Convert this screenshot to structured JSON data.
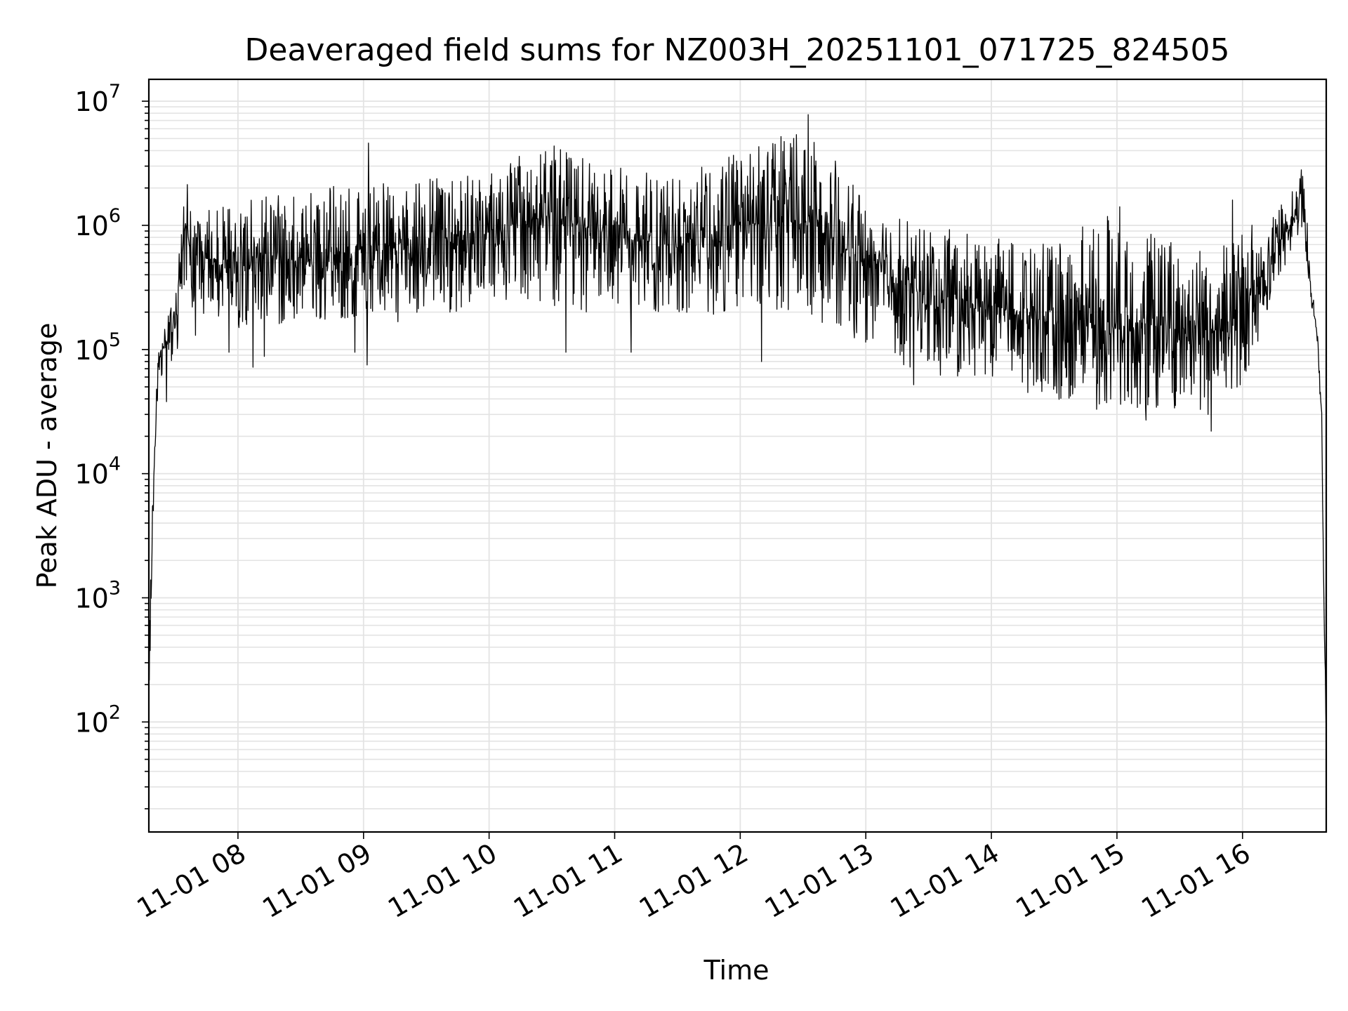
{
  "chart_data": {
    "type": "line",
    "title": "Deaveraged field sums for NZ003H_20251101_071725_824505",
    "xlabel": "Time",
    "ylabel": "Peak ADU - average",
    "yscale": "log",
    "ylim": [
      13,
      15000000
    ],
    "xlim_hours": [
      7.2903,
      16.6667
    ],
    "grid": true,
    "line_color": "#000000",
    "grid_color": "#e3e3e3",
    "x_ticks": [
      {
        "hour": 8,
        "label": "11-01 08"
      },
      {
        "hour": 9,
        "label": "11-01 09"
      },
      {
        "hour": 10,
        "label": "11-01 10"
      },
      {
        "hour": 11,
        "label": "11-01 11"
      },
      {
        "hour": 12,
        "label": "11-01 12"
      },
      {
        "hour": 13,
        "label": "11-01 13"
      },
      {
        "hour": 14,
        "label": "11-01 14"
      },
      {
        "hour": 15,
        "label": "11-01 15"
      },
      {
        "hour": 16,
        "label": "11-01 16"
      }
    ],
    "y_ticks": [
      {
        "value": 100,
        "base": "10",
        "exp": "2"
      },
      {
        "value": 1000,
        "base": "10",
        "exp": "3"
      },
      {
        "value": 10000,
        "base": "10",
        "exp": "4"
      },
      {
        "value": 100000,
        "base": "10",
        "exp": "5"
      },
      {
        "value": 1000000,
        "base": "10",
        "exp": "6"
      },
      {
        "value": 10000000,
        "base": "10",
        "exp": "7"
      }
    ],
    "series": [
      {
        "name": "Peak ADU - average",
        "envelope": [
          {
            "hour": 7.29,
            "low": 60,
            "high": 300,
            "median": 200
          },
          {
            "hour": 7.32,
            "low": 2000,
            "high": 8000,
            "median": 5000
          },
          {
            "hour": 7.36,
            "low": 40000,
            "high": 90000,
            "median": 60000
          },
          {
            "hour": 7.42,
            "low": 80000,
            "high": 150000,
            "median": 110000
          },
          {
            "hour": 7.5,
            "low": 60000,
            "high": 300000,
            "median": 150000
          },
          {
            "hour": 7.58,
            "low": 300000,
            "high": 2800000,
            "median": 1000000
          },
          {
            "hour": 7.65,
            "low": 200000,
            "high": 1200000,
            "median": 550000
          },
          {
            "hour": 8.0,
            "low": 150000,
            "high": 1600000,
            "median": 520000
          },
          {
            "hour": 8.5,
            "low": 150000,
            "high": 2000000,
            "median": 550000
          },
          {
            "hour": 9.0,
            "low": 180000,
            "high": 2200000,
            "median": 600000
          },
          {
            "hour": 9.5,
            "low": 150000,
            "high": 2500000,
            "median": 750000
          },
          {
            "hour": 10.0,
            "low": 250000,
            "high": 3000000,
            "median": 900000
          },
          {
            "hour": 10.5,
            "low": 200000,
            "high": 4500000,
            "median": 1200000
          },
          {
            "hour": 11.0,
            "low": 200000,
            "high": 3000000,
            "median": 800000
          },
          {
            "hour": 11.5,
            "low": 200000,
            "high": 2500000,
            "median": 700000
          },
          {
            "hour": 12.0,
            "low": 180000,
            "high": 4000000,
            "median": 1000000
          },
          {
            "hour": 12.5,
            "low": 200000,
            "high": 8000000,
            "median": 1100000
          },
          {
            "hour": 13.0,
            "low": 100000,
            "high": 1500000,
            "median": 500000
          },
          {
            "hour": 13.5,
            "low": 60000,
            "high": 1000000,
            "median": 260000
          },
          {
            "hour": 14.0,
            "low": 60000,
            "high": 800000,
            "median": 230000
          },
          {
            "hour": 14.5,
            "low": 40000,
            "high": 700000,
            "median": 160000
          },
          {
            "hour": 15.0,
            "low": 35000,
            "high": 1600000,
            "median": 170000
          },
          {
            "hour": 15.5,
            "low": 30000,
            "high": 700000,
            "median": 150000
          },
          {
            "hour": 15.9,
            "low": 25000,
            "high": 800000,
            "median": 140000
          },
          {
            "hour": 16.2,
            "low": 200000,
            "high": 1200000,
            "median": 500000
          },
          {
            "hour": 16.4,
            "low": 700000,
            "high": 2000000,
            "median": 1100000
          },
          {
            "hour": 16.48,
            "low": 1000000,
            "high": 2800000,
            "median": 1500000
          },
          {
            "hour": 16.55,
            "low": 200000,
            "high": 400000,
            "median": 250000
          },
          {
            "hour": 16.6,
            "low": 100000,
            "high": 150000,
            "median": 120000
          },
          {
            "hour": 16.63,
            "low": 20000,
            "high": 40000,
            "median": 30000
          },
          {
            "hour": 16.65,
            "low": 600,
            "high": 1000,
            "median": 800
          },
          {
            "hour": 16.667,
            "low": 50,
            "high": 90,
            "median": 70
          }
        ],
        "spikes": [
          {
            "hour": 7.43,
            "value": 38000
          },
          {
            "hour": 7.66,
            "value": 130000
          },
          {
            "hour": 7.93,
            "value": 95000
          },
          {
            "hour": 8.12,
            "value": 72000
          },
          {
            "hour": 8.21,
            "value": 88000
          },
          {
            "hour": 8.93,
            "value": 95000
          },
          {
            "hour": 9.04,
            "value": 4600000
          },
          {
            "hour": 9.03,
            "value": 75000
          },
          {
            "hour": 10.61,
            "value": 95000
          },
          {
            "hour": 11.13,
            "value": 95000
          },
          {
            "hour": 12.17,
            "value": 80000
          },
          {
            "hour": 12.54,
            "value": 7800000
          },
          {
            "hour": 13.38,
            "value": 52000
          },
          {
            "hour": 14.29,
            "value": 45000
          },
          {
            "hour": 14.84,
            "value": 33000
          },
          {
            "hour": 15.23,
            "value": 27000
          },
          {
            "hour": 15.75,
            "value": 22000
          },
          {
            "hour": 15.92,
            "value": 1600000
          },
          {
            "hour": 16.47,
            "value": 2800000
          }
        ]
      }
    ]
  }
}
